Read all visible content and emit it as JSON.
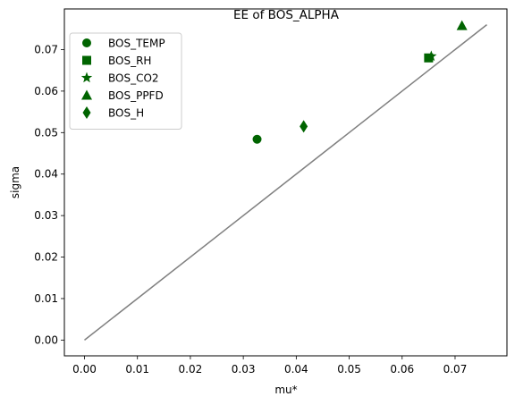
{
  "chart_data": {
    "type": "scatter",
    "title": "EE of BOS_ALPHA",
    "xlabel": "mu*",
    "ylabel": "sigma",
    "xlim": [
      -0.0038,
      0.0798
    ],
    "ylim": [
      -0.0038,
      0.0798
    ],
    "xticks": [
      "0.00",
      "0.01",
      "0.02",
      "0.03",
      "0.04",
      "0.05",
      "0.06",
      "0.07"
    ],
    "yticks": [
      "0.00",
      "0.01",
      "0.02",
      "0.03",
      "0.04",
      "0.05",
      "0.06",
      "0.07"
    ],
    "legend_position": "upper-left",
    "grid": false,
    "marker_color": "#006400",
    "reference_line": {
      "color": "#808080",
      "from": [
        0,
        0
      ],
      "to": [
        0.076,
        0.076
      ]
    },
    "series": [
      {
        "name": "BOS_TEMP",
        "marker": "circle",
        "points": [
          [
            0.0326,
            0.0484
          ]
        ]
      },
      {
        "name": "BOS_RH",
        "marker": "square",
        "points": [
          [
            0.065,
            0.068
          ]
        ]
      },
      {
        "name": "BOS_CO2",
        "marker": "star",
        "points": [
          [
            0.0655,
            0.0684
          ]
        ]
      },
      {
        "name": "BOS_PPFD",
        "marker": "triangle",
        "points": [
          [
            0.0713,
            0.0758
          ]
        ]
      },
      {
        "name": "BOS_H",
        "marker": "diamond",
        "points": [
          [
            0.0414,
            0.0515
          ]
        ]
      }
    ]
  }
}
